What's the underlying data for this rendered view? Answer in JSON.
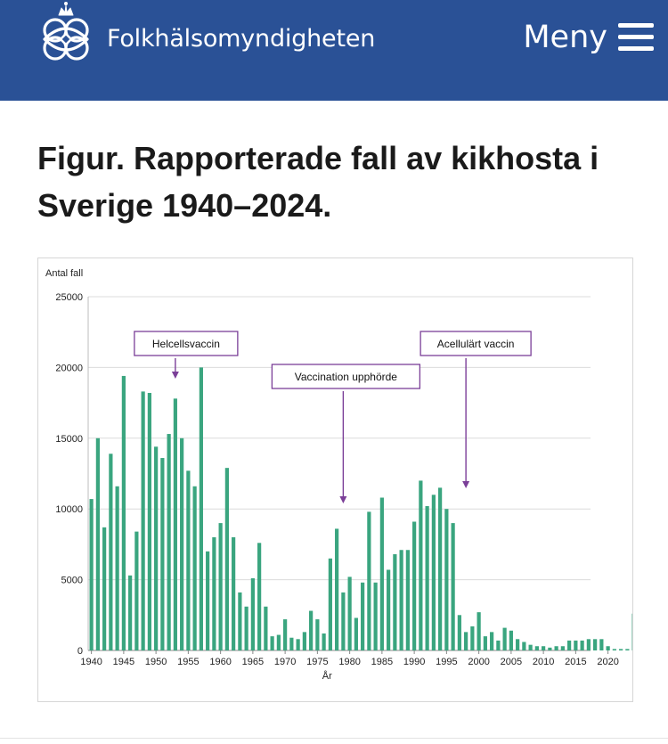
{
  "header": {
    "brand": "Folkhälsomyndigheten",
    "menu_label": "Meny",
    "logo_icon": "crown-knot-logo",
    "menu_icon": "hamburger-icon",
    "background": "#2a5196"
  },
  "page": {
    "title": "Figur. Rapporterade fall av kikhosta i Sverige 1940–2024."
  },
  "chart_data": {
    "type": "bar",
    "ylabel": "Antal fall",
    "xlabel": "År",
    "ylim": [
      0,
      25000
    ],
    "yticks": [
      0,
      5000,
      10000,
      15000,
      20000,
      25000
    ],
    "xticks": [
      1940,
      1945,
      1950,
      1955,
      1960,
      1965,
      1970,
      1975,
      1980,
      1985,
      1990,
      1995,
      2000,
      2005,
      2010,
      2015,
      2020
    ],
    "grid": true,
    "bar_color": "#3aa57f",
    "annotation_color": "#7b3f98",
    "categories": [
      1940,
      1941,
      1942,
      1943,
      1944,
      1945,
      1946,
      1947,
      1948,
      1949,
      1950,
      1951,
      1952,
      1953,
      1954,
      1955,
      1956,
      1957,
      1958,
      1959,
      1960,
      1961,
      1962,
      1963,
      1964,
      1965,
      1966,
      1967,
      1968,
      1969,
      1970,
      1971,
      1972,
      1973,
      1974,
      1975,
      1976,
      1977,
      1978,
      1979,
      1980,
      1981,
      1982,
      1983,
      1984,
      1985,
      1986,
      1987,
      1988,
      1989,
      1990,
      1991,
      1992,
      1993,
      1994,
      1995,
      1996,
      1997,
      1998,
      1999,
      2000,
      2001,
      2002,
      2003,
      2004,
      2005,
      2006,
      2007,
      2008,
      2009,
      2010,
      2011,
      2012,
      2013,
      2014,
      2015,
      2016,
      2017,
      2018,
      2019,
      2020,
      2021,
      2022,
      2023,
      2024
    ],
    "values": [
      10700,
      15000,
      8700,
      13900,
      11600,
      19400,
      5300,
      8400,
      18300,
      18200,
      14400,
      13600,
      15300,
      17800,
      15000,
      12700,
      11600,
      20000,
      7000,
      8000,
      9000,
      12900,
      8000,
      4100,
      3100,
      5100,
      7600,
      3100,
      1000,
      1100,
      2200,
      900,
      800,
      1300,
      2800,
      2200,
      1200,
      6500,
      8600,
      4100,
      5200,
      2300,
      4800,
      9800,
      4800,
      10800,
      5700,
      6800,
      7100,
      7100,
      9100,
      12000,
      10200,
      11000,
      11500,
      10000,
      9000,
      2500,
      1300,
      1700,
      2700,
      1000,
      1300,
      700,
      1600,
      1400,
      800,
      600,
      400,
      300,
      300,
      200,
      300,
      300,
      700,
      700,
      700,
      800,
      800,
      800,
      300,
      100,
      100,
      100,
      2600
    ],
    "annotations": [
      {
        "label": "Helcellsvaccin",
        "year": 1953
      },
      {
        "label": "Vaccination upphörde",
        "year": 1979
      },
      {
        "label": "Acellulärt vaccin",
        "year": 1998
      }
    ]
  }
}
